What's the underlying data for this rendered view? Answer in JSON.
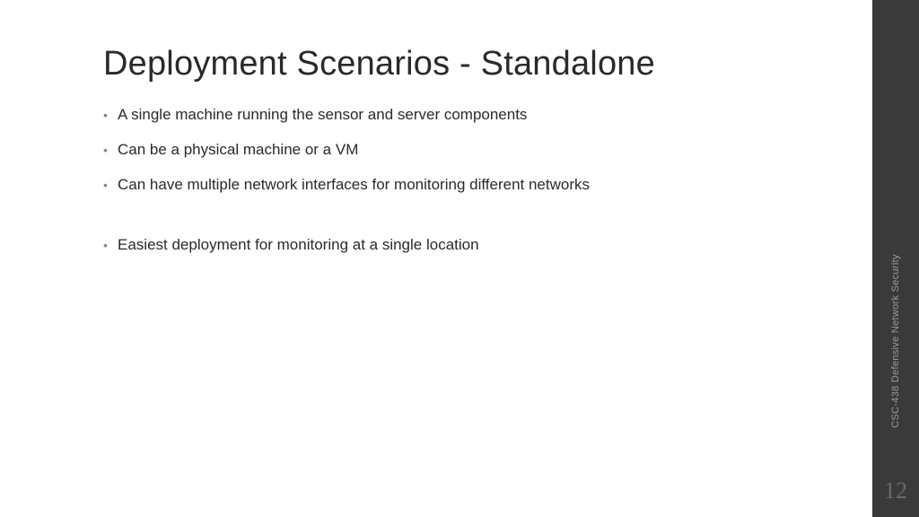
{
  "slide": {
    "title": "Deployment Scenarios - Standalone",
    "bullets": [
      "A single machine running the sensor and server components",
      "Can be a physical machine or a VM",
      "Can have multiple network interfaces for monitoring different networks",
      "Easiest deployment for monitoring at a single location"
    ],
    "course_label": "CSC-438 Defensive Network Security",
    "page_number": "12",
    "colors": {
      "background": "#ffffff",
      "sidebar_bg": "#3a3a3a",
      "title_color": "#2a2a2a",
      "body_color": "#2a2a2a",
      "bullet_marker": "#888888",
      "course_label_color": "#9a9a9a",
      "page_number_color": "#6a6a6a"
    },
    "typography": {
      "title_fontsize": 38,
      "body_fontsize": 17,
      "course_label_fontsize": 11,
      "page_number_fontsize": 26
    }
  }
}
